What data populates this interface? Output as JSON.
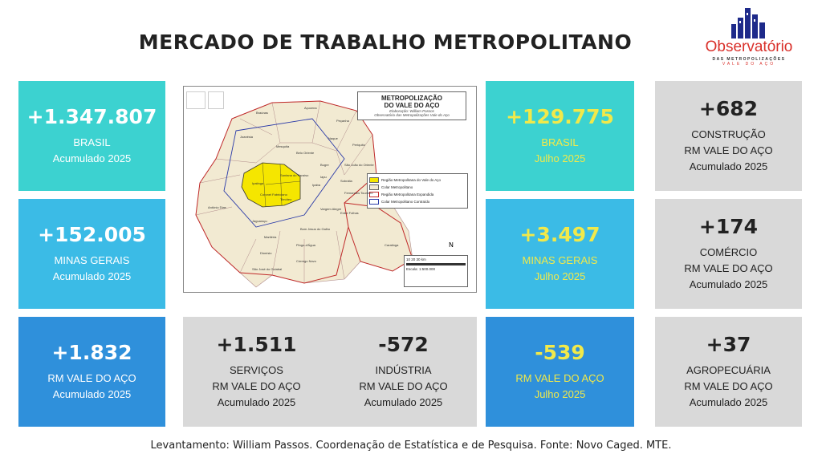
{
  "title": "MERCADO DE TRABALHO METROPOLITANO",
  "logo": {
    "name": "Observatório",
    "sub1": "DAS METROPOLIZAÇÕES",
    "sub2": "VALE DO AÇO"
  },
  "cards": {
    "brasil_acum": {
      "value": "+1.347.807",
      "line1": "BRASIL",
      "line2": "Acumulado 2025"
    },
    "minas_acum": {
      "value": "+152.005",
      "line1": "MINAS GERAIS",
      "line2": "Acumulado 2025"
    },
    "rm_acum": {
      "value": "+1.832",
      "line1": "RM VALE DO AÇO",
      "line2": "Acumulado 2025"
    },
    "servicos": {
      "value": "+1.511",
      "line1": "SERVIÇOS",
      "line2": "RM VALE DO AÇO",
      "line3": "Acumulado 2025"
    },
    "industria": {
      "value": "-572",
      "line1": "INDÚSTRIA",
      "line2": "RM VALE DO AÇO",
      "line3": "Acumulado 2025"
    },
    "brasil_jul": {
      "value": "+129.775",
      "line1": "BRASIL",
      "line2": "Julho 2025"
    },
    "minas_jul": {
      "value": "+3.497",
      "line1": "MINAS GERAIS",
      "line2": "Julho 2025"
    },
    "rm_jul": {
      "value": "-539",
      "line1": "RM VALE DO AÇO",
      "line2": "Julho 2025"
    },
    "construcao": {
      "value": "+682",
      "line1": "CONSTRUÇÃO",
      "line2": "RM VALE DO AÇO",
      "line3": "Acumulado 2025"
    },
    "comercio": {
      "value": "+174",
      "line1": "COMÉRCIO",
      "line2": "RM VALE DO AÇO",
      "line3": "Acumulado 2025"
    },
    "agro": {
      "value": "+37",
      "line1": "AGROPECUÁRIA",
      "line2": "RM VALE DO AÇO",
      "line3": "Acumulado 2025"
    }
  },
  "map": {
    "title_line1": "METROPOLIZAÇÃO",
    "title_line2": "DO VALE DO AÇO",
    "credit1": "Elaboração: William Passos",
    "credit2": "Observatório das Metropolizações Vale do Aço",
    "legend": [
      {
        "label": "Região Metropolitana do Vale do Aço",
        "color": "#f5e600"
      },
      {
        "label": "Colar Metropolitano",
        "color": "#f2ead2"
      },
      {
        "label": "Região Metropolitana Expandida",
        "color": "#ffffff"
      },
      {
        "label": "Colar Metropolitano Contraído",
        "color": "#ffffff"
      }
    ],
    "scale_ticks": "10   20   30 km",
    "scale_note": "Escala: 1:500.000",
    "north": "N",
    "places": [
      "Braúnas",
      "Açucena",
      "Peçanha",
      "Joanésia",
      "Mesquita",
      "Belo Oriente",
      "Naque",
      "Periquito",
      "Ipatinga",
      "Santana do Paraíso",
      "Coronel Fabriciano",
      "Timóteo",
      "Antônio Dias",
      "Jaguaraçu",
      "Marliéria",
      "Dionísio",
      "São José do Goiabal",
      "Bom Jesus do Galho",
      "Pingo-d'Água",
      "Córrego Novo",
      "Caratinga",
      "Iapu",
      "Bugre",
      "Ipaba",
      "Sobrália",
      "Fernandes Tourinho",
      "São João do Oriente",
      "Vargem Alegre",
      "Entre Folhas"
    ]
  },
  "footer": "Levantamento: William Passos. Coordenação de Estatística e de Pesquisa. Fonte: Novo Caged. MTE."
}
